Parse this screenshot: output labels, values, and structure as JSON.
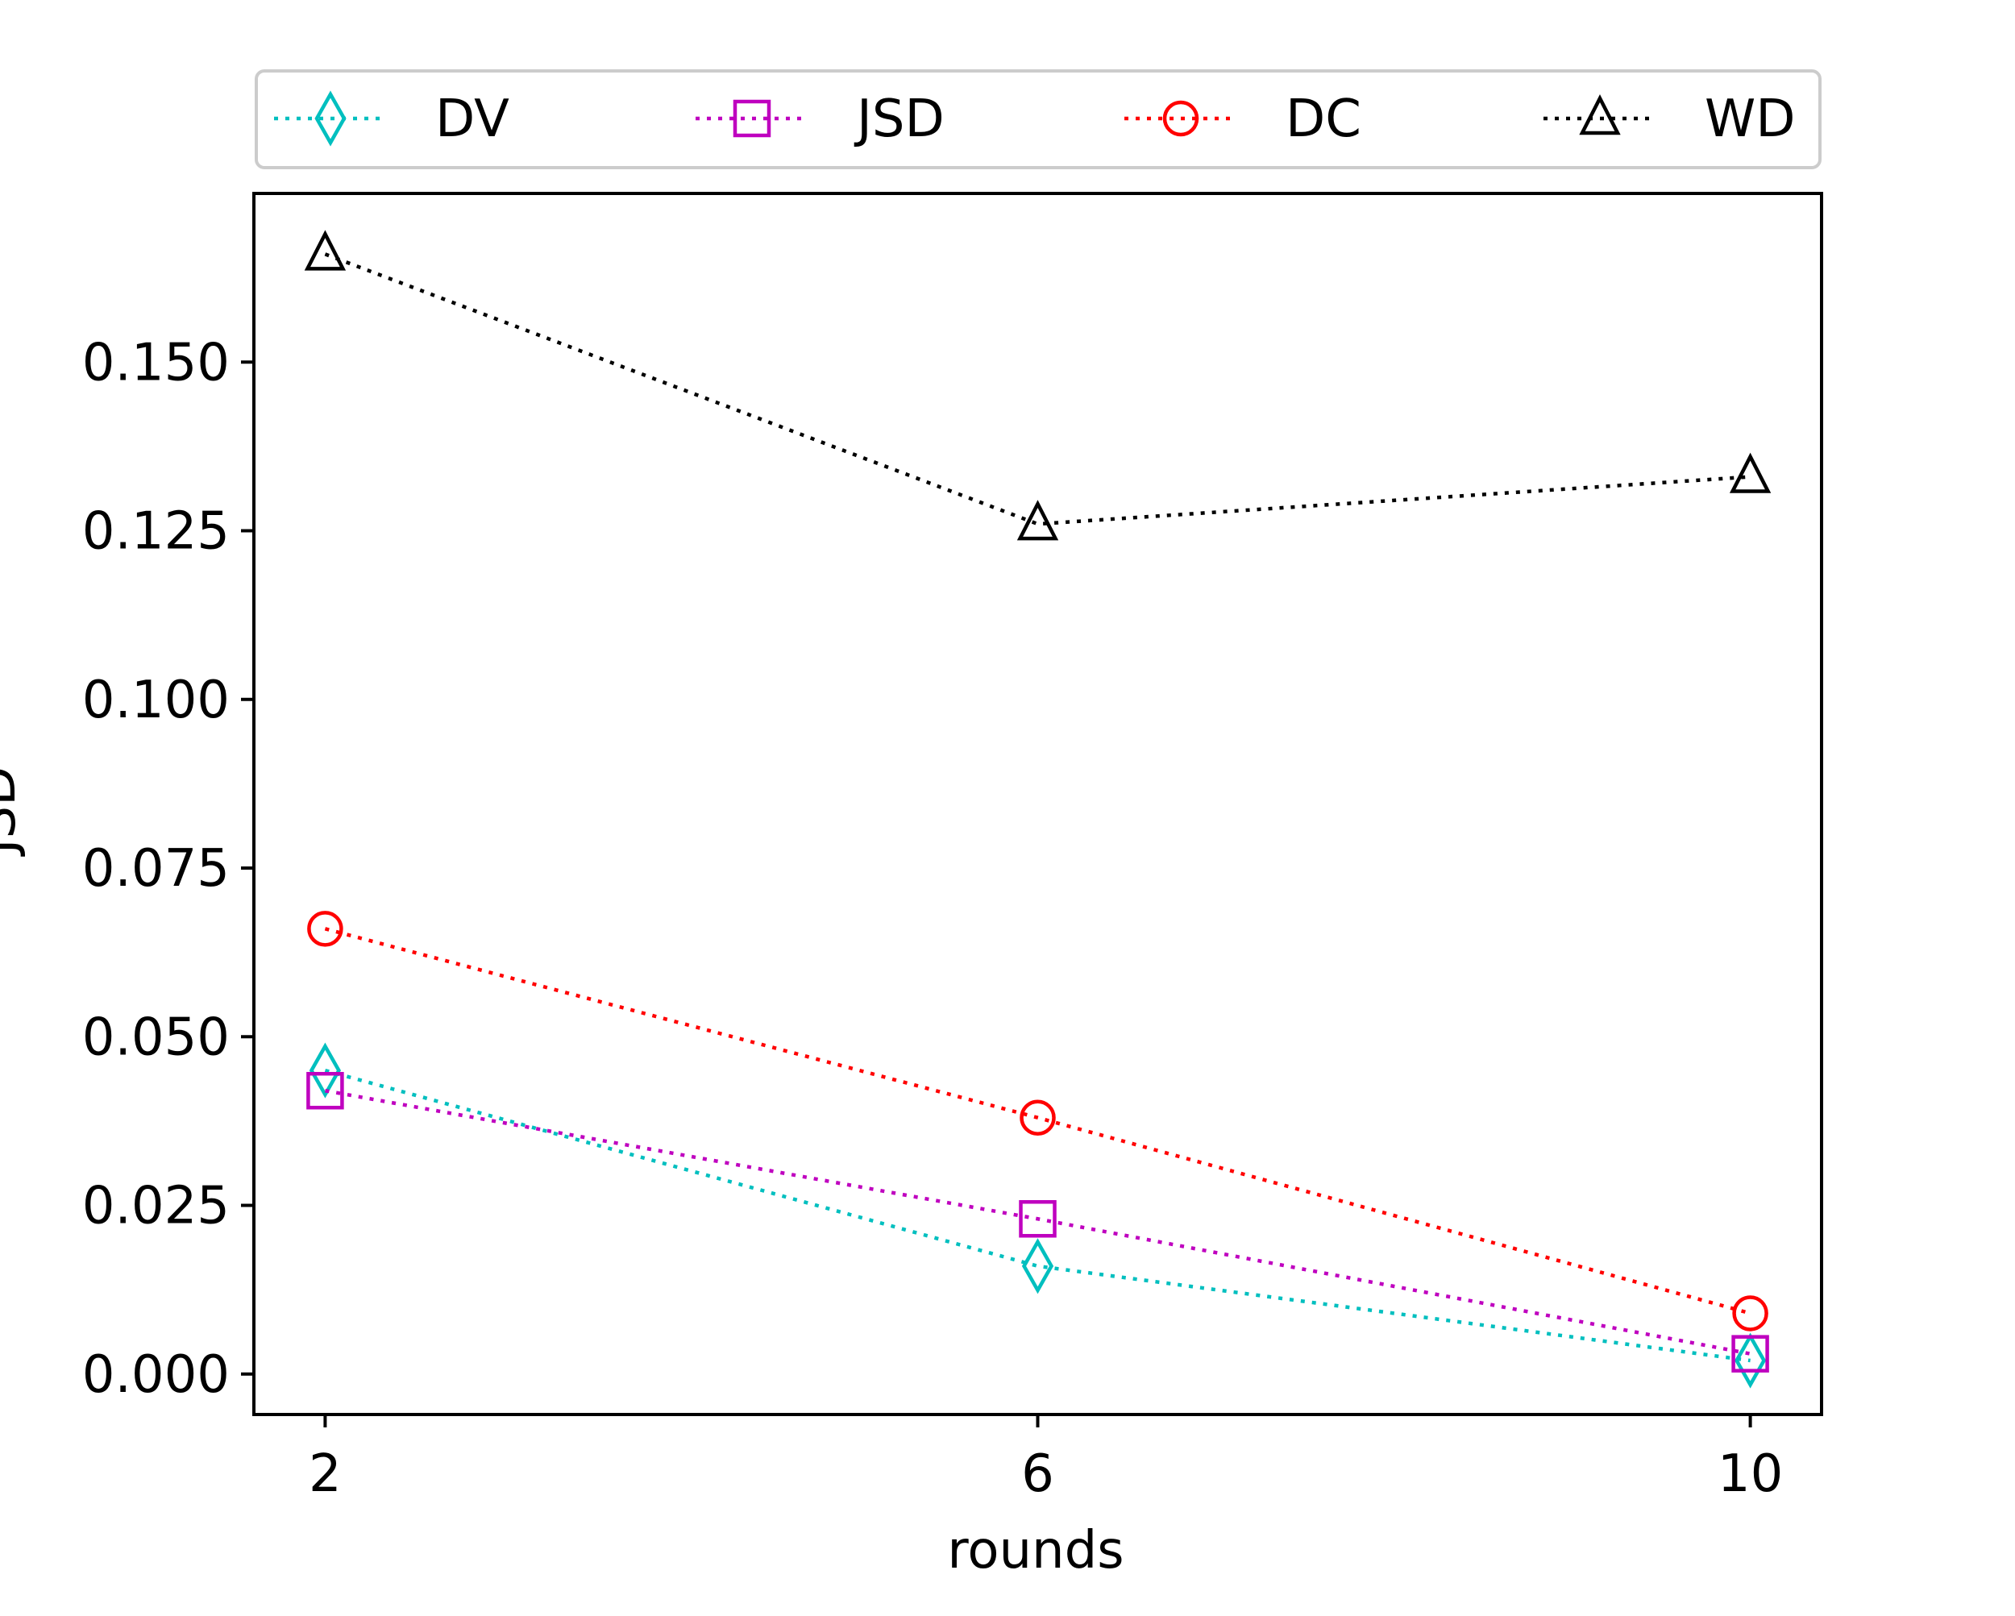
{
  "chart_data": {
    "type": "line",
    "xlabel": "rounds",
    "ylabel": "JSD",
    "x": [
      2,
      6,
      10
    ],
    "xticks": [
      "2",
      "6",
      "10"
    ],
    "xlim": [
      1.6,
      10.4
    ],
    "yticks": [
      "0.000",
      "0.025",
      "0.050",
      "0.075",
      "0.100",
      "0.125",
      "0.150"
    ],
    "ytick_values": [
      0,
      0.025,
      0.05,
      0.075,
      0.1,
      0.125,
      0.15
    ],
    "ylim": [
      -0.006,
      0.175
    ],
    "grid": false,
    "legend_position": "top, outside plot",
    "series": [
      {
        "name": "DV",
        "values": [
          0.045,
          0.016,
          0.002
        ],
        "color": "#00bfbf",
        "marker": "diamond",
        "linestyle": "dotted"
      },
      {
        "name": "JSD",
        "values": [
          0.042,
          0.023,
          0.003
        ],
        "color": "#bf00bf",
        "marker": "square",
        "linestyle": "dotted"
      },
      {
        "name": "DC",
        "values": [
          0.066,
          0.038,
          0.009
        ],
        "color": "#ff0000",
        "marker": "circle",
        "linestyle": "dotted"
      },
      {
        "name": "WD",
        "values": [
          0.166,
          0.126,
          0.133
        ],
        "color": "#000000",
        "marker": "triangle",
        "linestyle": "dotted"
      }
    ]
  }
}
